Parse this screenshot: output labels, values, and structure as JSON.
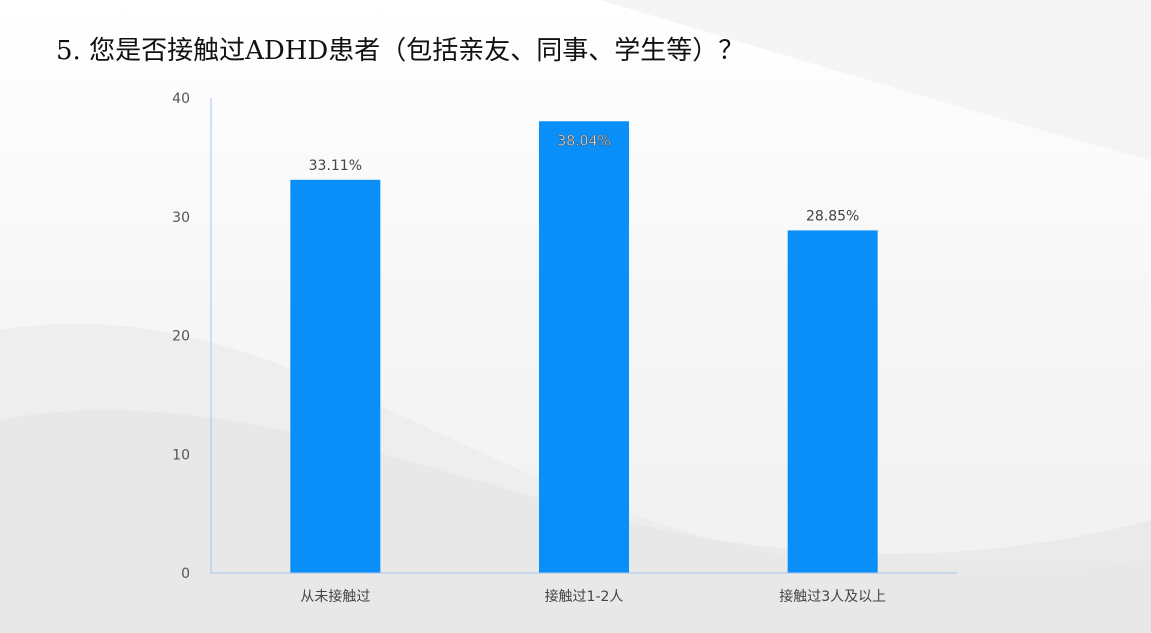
{
  "title": "5. 您是否接触过ADHD患者（包括亲友、同事、学生等）？",
  "colors": {
    "bar": "#0a8ef7",
    "axis": "#a8c4e6",
    "tick_text": "#555555",
    "label_text": "#444444"
  },
  "chart_data": {
    "type": "bar",
    "categories": [
      "从未接触过",
      "接触过1-2人",
      "接触过3人及以上"
    ],
    "values": [
      33.11,
      38.04,
      28.85
    ],
    "data_labels": [
      "33.11%",
      "38.04%",
      "28.85%"
    ],
    "title": "",
    "xlabel": "",
    "ylabel": "",
    "ylim": [
      0,
      40
    ],
    "yticks": [
      "0",
      "10",
      "20",
      "30",
      "40"
    ],
    "grid": false,
    "legend": "none"
  }
}
